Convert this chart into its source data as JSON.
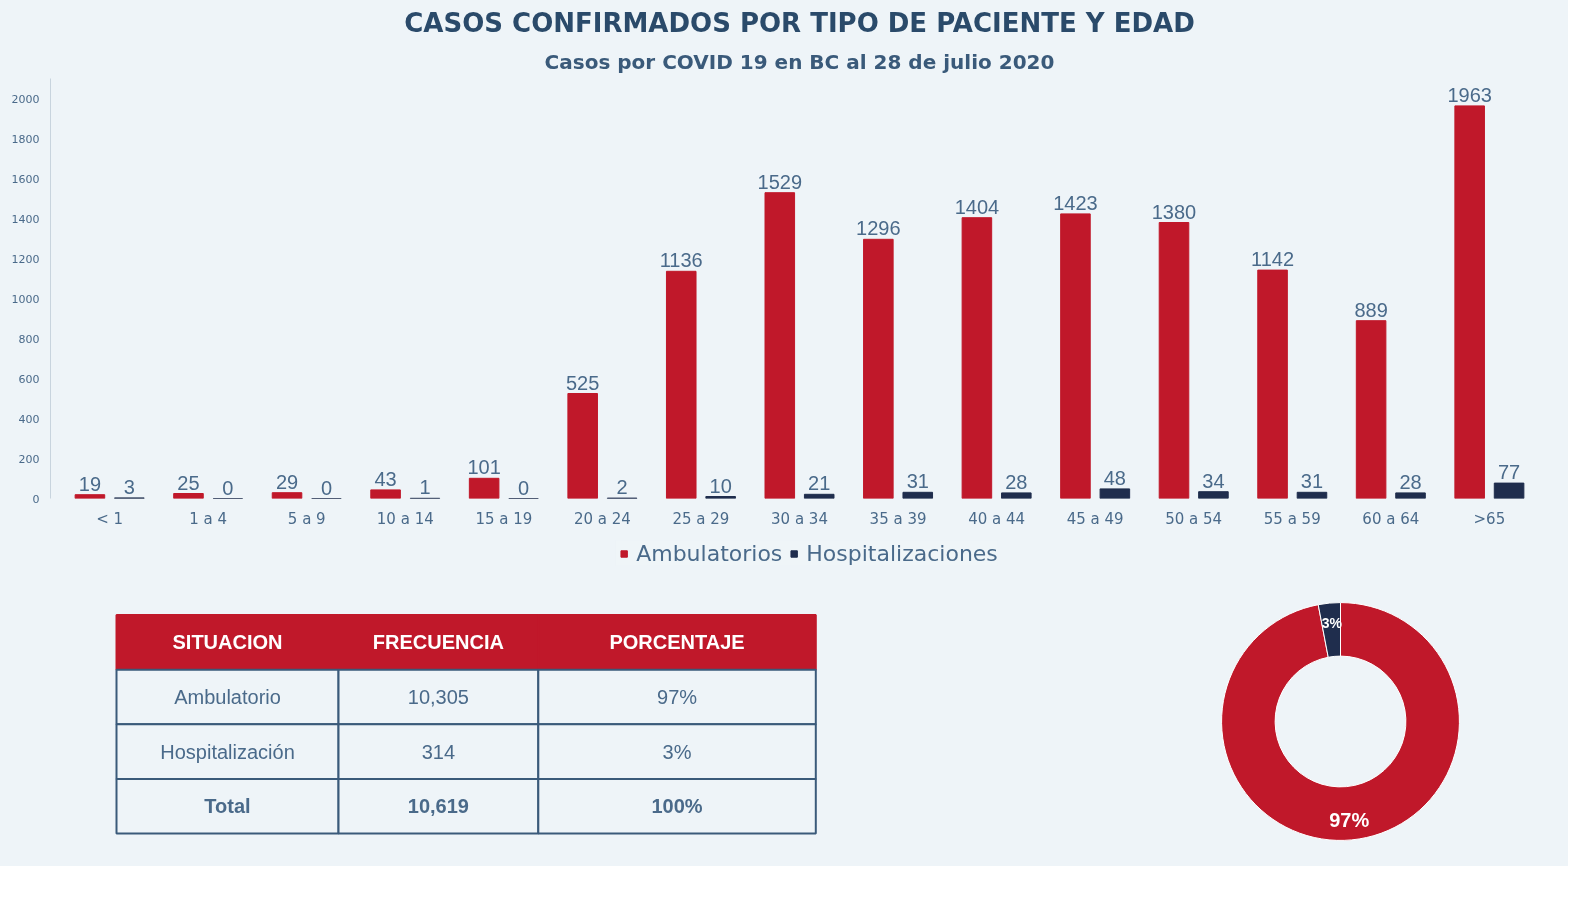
{
  "chart_data": [
    {
      "type": "bar",
      "title": "CASOS CONFIRMADOS POR TIPO DE PACIENTE Y EDAD",
      "subtitle": "Casos por COVID 19 en BC al 28 de julio 2020",
      "categories": [
        "< 1",
        "1 a 4",
        "5 a 9",
        "10 a 14",
        "15 a 19",
        "20 a 24",
        "25 a 29",
        "30 a 34",
        "35 a 39",
        "40 a 44",
        "45 a 49",
        "50 a 54",
        "55 a 59",
        "60 a 64",
        ">65"
      ],
      "series": [
        {
          "name": "Ambulatorios",
          "color": "#c0182a",
          "values": [
            19,
            25,
            29,
            43,
            101,
            525,
            1136,
            1529,
            1296,
            1404,
            1423,
            1380,
            1142,
            889,
            1963
          ]
        },
        {
          "name": "Hospitalizaciones",
          "color": "#1f2d4d",
          "values": [
            3,
            0,
            0,
            1,
            0,
            2,
            10,
            21,
            31,
            28,
            48,
            34,
            31,
            28,
            77
          ]
        }
      ],
      "ylim": [
        0,
        2100
      ],
      "yticks": [
        0,
        200,
        400,
        600,
        800,
        1000,
        1200,
        1400,
        1600,
        1800,
        2000
      ],
      "data_labels": true,
      "legend": "bottom"
    },
    {
      "type": "other",
      "annotations": [
        "SITUACION",
        "FRECUENCIA",
        "PORCENTAJE",
        "Ambulatorio",
        "10,305",
        "97%",
        "Hospitalización",
        "314",
        "3%",
        "Total",
        "10,619",
        "100%"
      ]
    },
    {
      "type": "donut",
      "categories": [
        null,
        null
      ],
      "values": [
        97,
        3
      ],
      "colors": [
        "#c0182a",
        "#1f2d4d"
      ],
      "value_labels": [
        "97%",
        "3%"
      ]
    }
  ]
}
